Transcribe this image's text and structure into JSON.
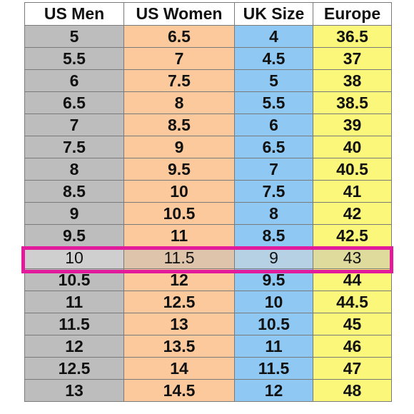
{
  "table": {
    "headers": [
      "US Men",
      "US Women",
      "UK Size",
      "Europe"
    ],
    "rows": [
      [
        "5",
        "6.5",
        "4",
        "36.5"
      ],
      [
        "5.5",
        "7",
        "4.5",
        "37"
      ],
      [
        "6",
        "7.5",
        "5",
        "38"
      ],
      [
        "6.5",
        "8",
        "5.5",
        "38.5"
      ],
      [
        "7",
        "8.5",
        "6",
        "39"
      ],
      [
        "7.5",
        "9",
        "6.5",
        "40"
      ],
      [
        "8",
        "9.5",
        "7",
        "40.5"
      ],
      [
        "8.5",
        "10",
        "7.5",
        "41"
      ],
      [
        "9",
        "10.5",
        "8",
        "42"
      ],
      [
        "9.5",
        "11",
        "8.5",
        "42.5"
      ],
      [
        "10",
        "11.5",
        "9",
        "43"
      ],
      [
        "10.5",
        "12",
        "9.5",
        "44"
      ],
      [
        "11",
        "12.5",
        "10",
        "44.5"
      ],
      [
        "11.5",
        "13",
        "10.5",
        "45"
      ],
      [
        "12",
        "13.5",
        "11",
        "46"
      ],
      [
        "12.5",
        "14",
        "11.5",
        "47"
      ],
      [
        "13",
        "14.5",
        "12",
        "48"
      ]
    ],
    "highlighted_row": 10
  },
  "colors": {
    "us_men": "#bdbdbd",
    "us_women": "#fbc99b",
    "uk_size": "#8fc9f3",
    "europe": "#fbf77a",
    "highlight_border": "#e21b9c"
  }
}
